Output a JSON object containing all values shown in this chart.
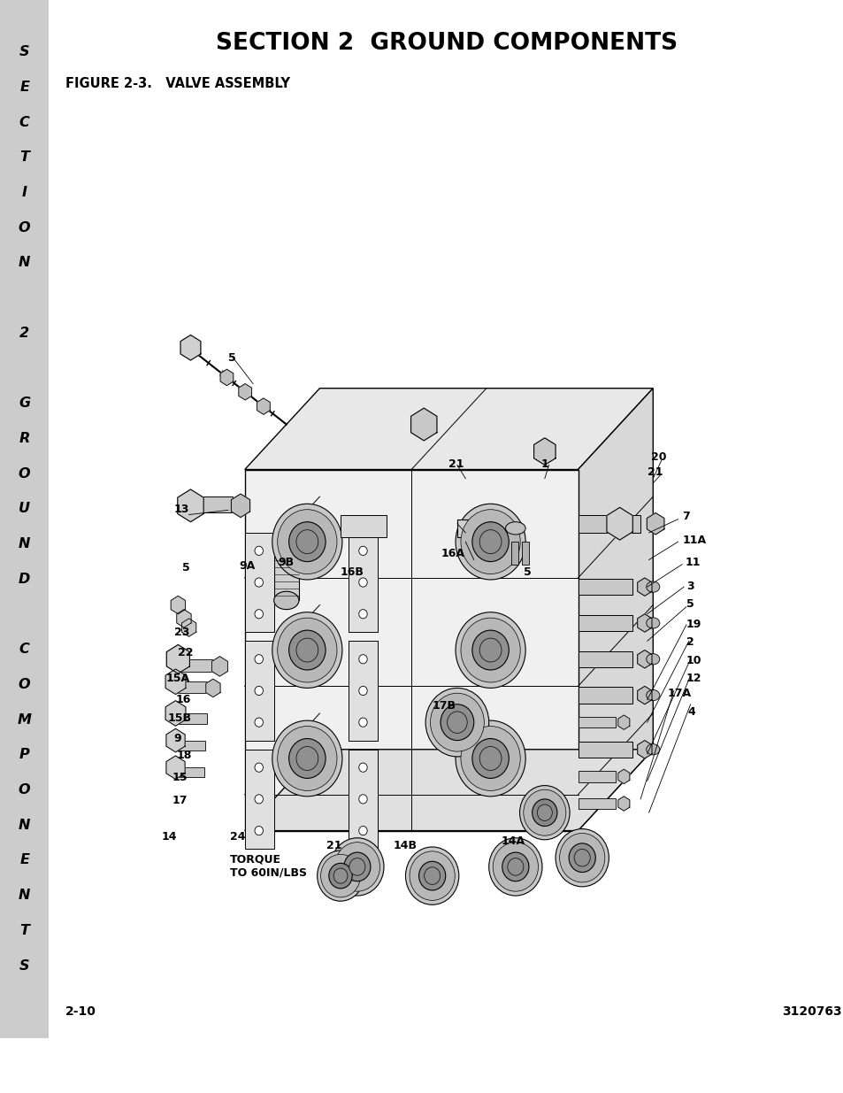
{
  "title": "SECTION 2  GROUND COMPONENTS",
  "figure_label": "FIGURE 2-3.   VALVE ASSEMBLY",
  "page_number_left": "2-10",
  "page_number_right": "3120763",
  "side_banner_letters": [
    "S",
    "E",
    "C",
    "T",
    "I",
    "O",
    "N",
    " ",
    "2",
    " ",
    "G",
    "R",
    "O",
    "U",
    "N",
    "D",
    " ",
    "C",
    "O",
    "M",
    "P",
    "O",
    "N",
    "E",
    "N",
    "T",
    "S"
  ],
  "background_color": "#ffffff",
  "banner_bg_color": "#cccccc",
  "title_fontsize": 19,
  "figure_label_fontsize": 10.5,
  "footer_fontsize": 10,
  "banner_fontsize": 11.5
}
